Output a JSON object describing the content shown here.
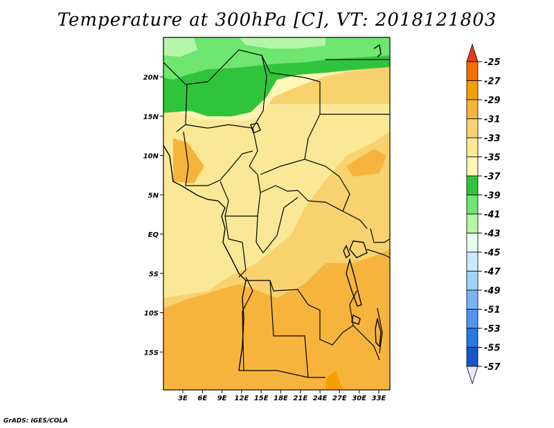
{
  "title": "Temperature at 300hPa [C], VT: 2018121803",
  "credit": "GrADS: IGES/COLA",
  "lat_ticks": [
    "20N",
    "15N",
    "10N",
    "5N",
    "EQ",
    "5S",
    "10S",
    "15S"
  ],
  "lon_ticks": [
    "3E",
    "6E",
    "9E",
    "12E",
    "15E",
    "18E",
    "21E",
    "24E",
    "27E",
    "30E",
    "33E"
  ],
  "colorbar": {
    "labels": [
      "-25",
      "-27",
      "-29",
      "-31",
      "-33",
      "-35",
      "-37",
      "-39",
      "-41",
      "-43",
      "-45",
      "-47",
      "-49",
      "-51",
      "-53",
      "-55",
      "-57"
    ],
    "colors": [
      "#e63c14",
      "#f56e00",
      "#f5a000",
      "#f7b43c",
      "#f7d26e",
      "#fae896",
      "#fff5b4",
      "#30c43c",
      "#6ee670",
      "#b4f5a8",
      "#e6fff0",
      "#c8ebff",
      "#a0d2fa",
      "#78b4f5",
      "#5096f0",
      "#2878e6",
      "#1458c8",
      "#0a3ca0",
      "#1e1e78",
      "#e6e6ff"
    ]
  },
  "map_colors": {
    "c27": "#f5a000",
    "c29": "#f7b43c",
    "c31": "#f7d26e",
    "c33": "#fae896",
    "c35": "#fff5b4",
    "c37": "#30c43c",
    "c39": "#6ee670",
    "c41": "#b4f5a8"
  }
}
